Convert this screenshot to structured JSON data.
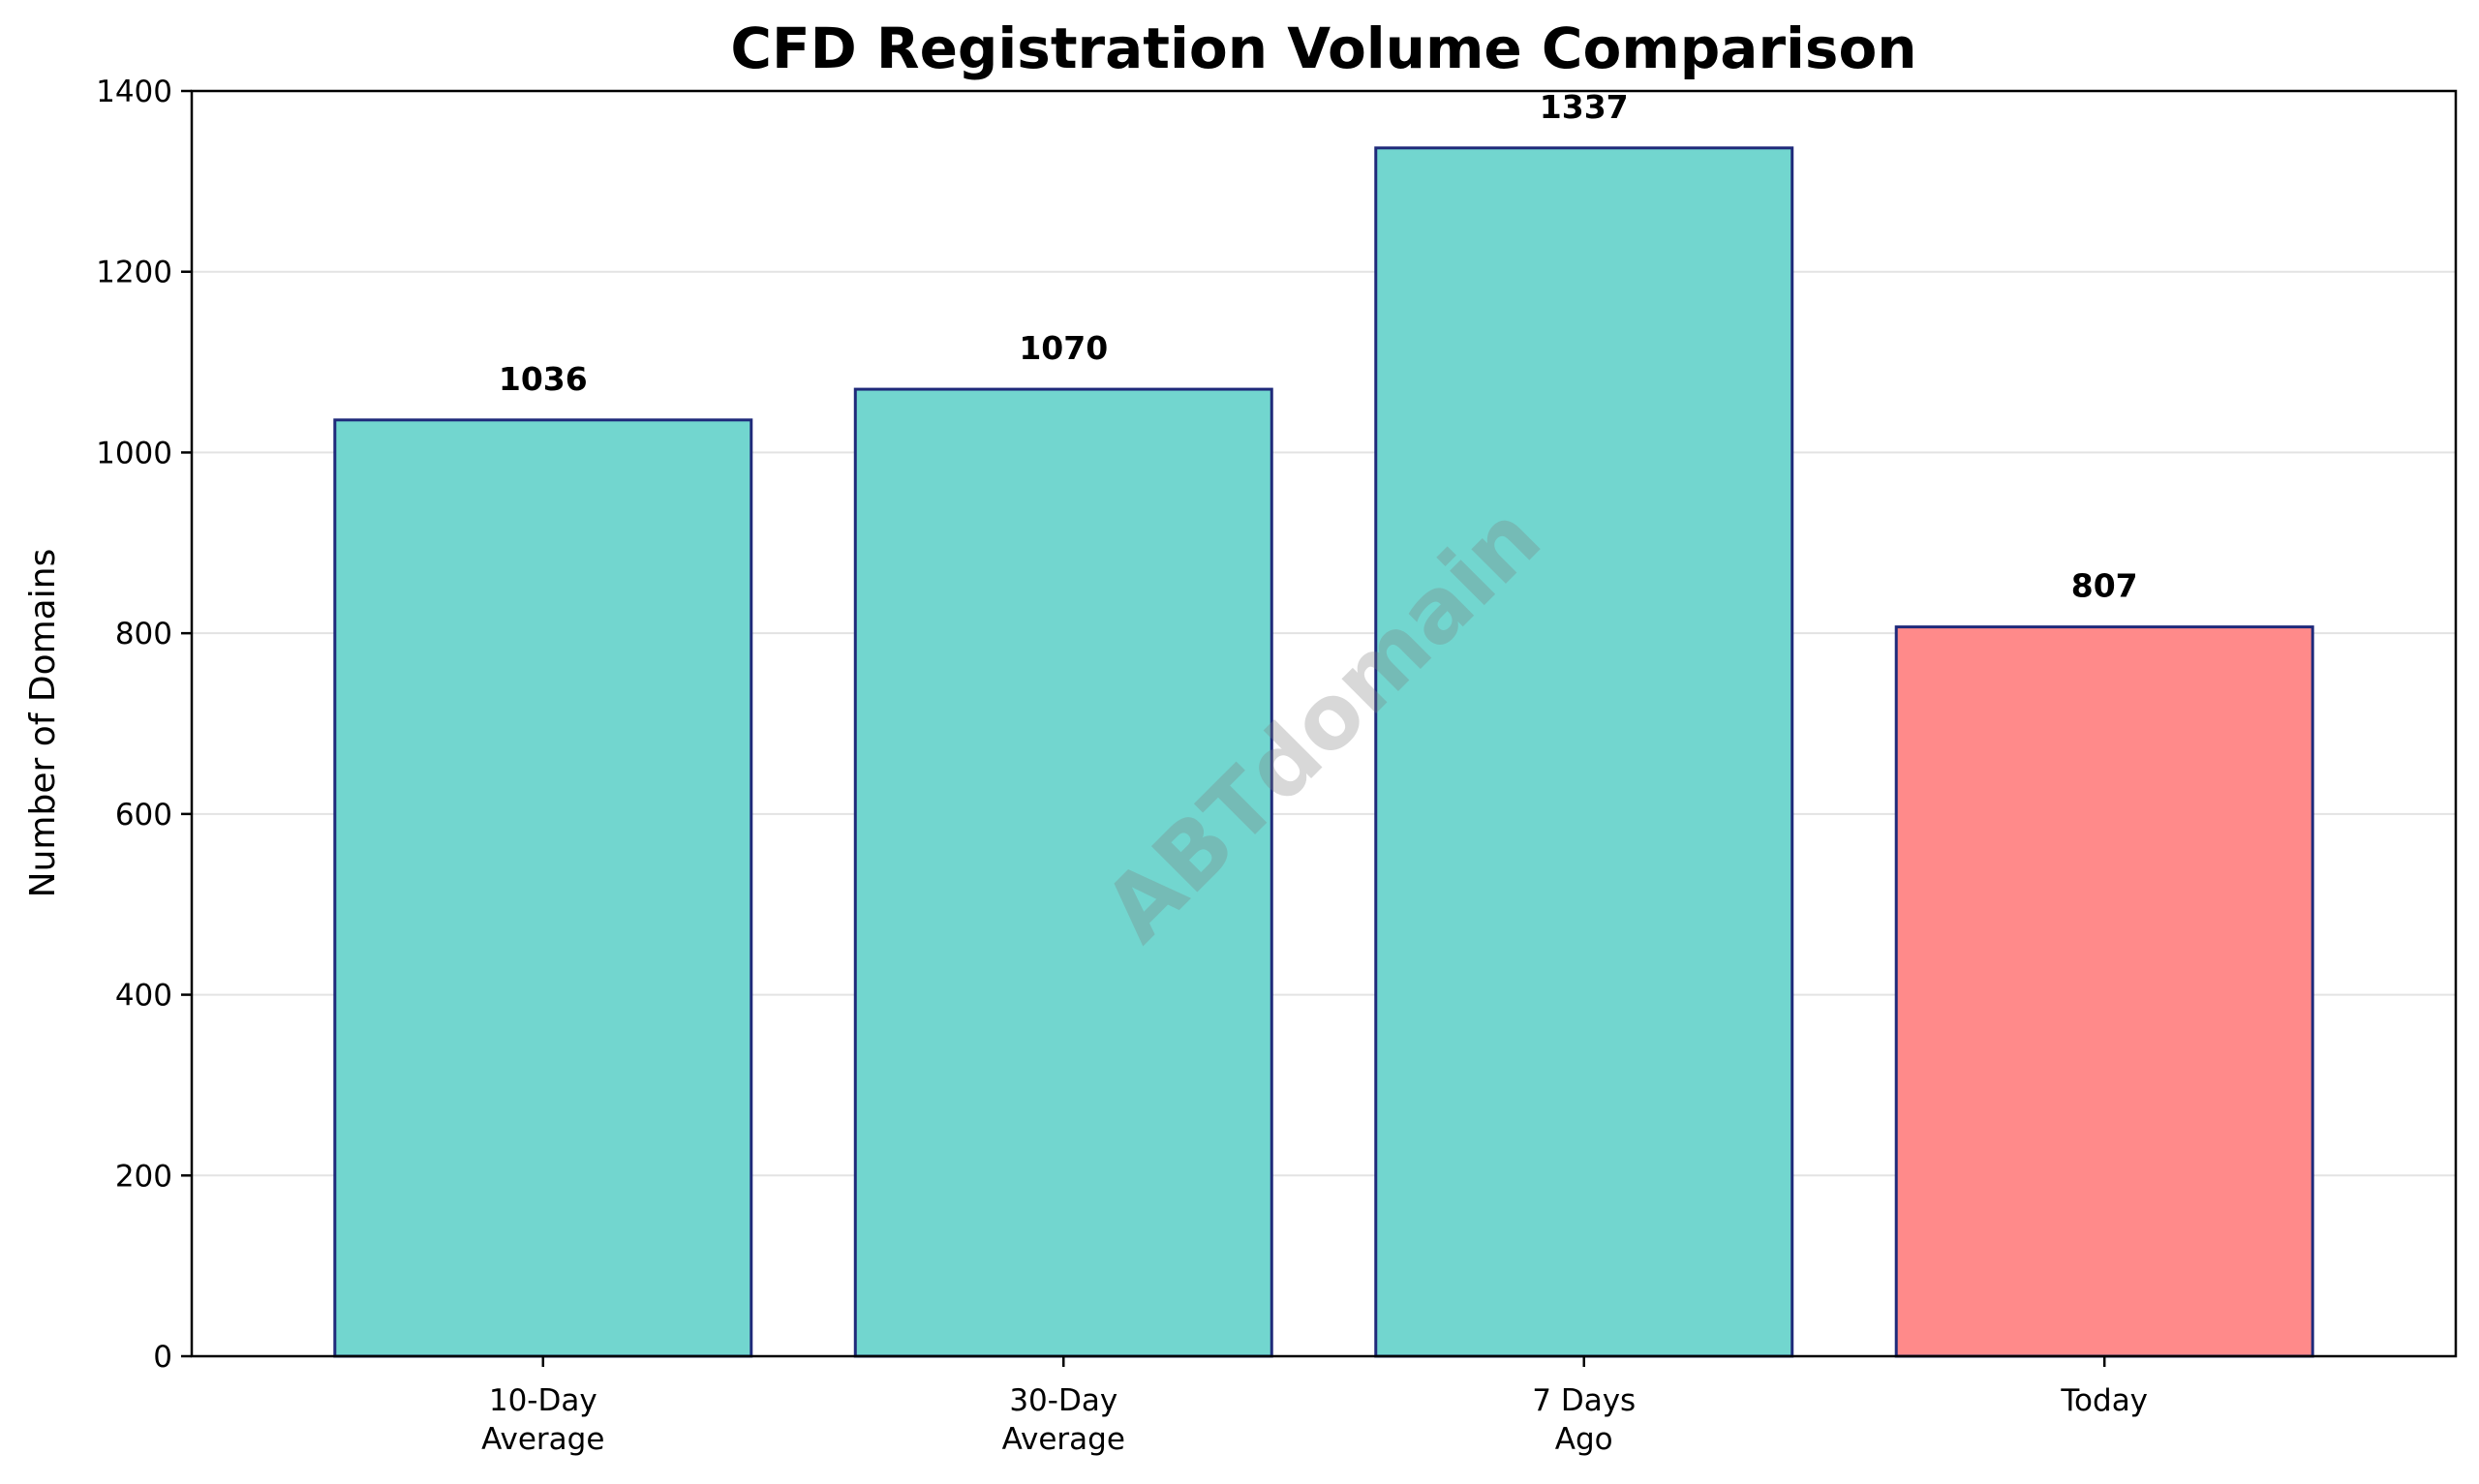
{
  "chart_data": {
    "type": "bar",
    "title": "CFD Registration Volume Comparison",
    "xlabel": "",
    "ylabel": "Number of Domains",
    "categories": [
      [
        "10-Day",
        "Average"
      ],
      [
        "30-Day",
        "Average"
      ],
      [
        "7 Days",
        "Ago"
      ],
      [
        "Today"
      ]
    ],
    "values": [
      1036,
      1070,
      1337,
      807
    ],
    "value_labels": [
      "1036",
      "1070",
      "1337",
      "807"
    ],
    "bar_colors": [
      "#72d6cf",
      "#72d6cf",
      "#72d6cf",
      "#ff8a8a"
    ],
    "edge_color": "#1f2a7a",
    "ylim": [
      0,
      1400
    ],
    "yticks": [
      0,
      200,
      400,
      600,
      800,
      1000,
      1200,
      1400
    ],
    "grid": "y",
    "watermark": "ABTdomain"
  }
}
